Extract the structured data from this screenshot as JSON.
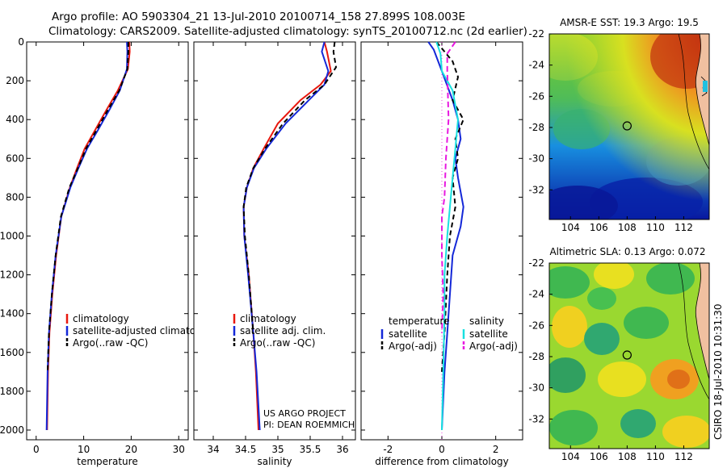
{
  "header": {
    "line1": "Argo profile: AO 5903304_21 13-Jul-2010 20100714_158 27.899S 108.003E",
    "line2": "Climatology: CARS2009. Satellite-adjusted climatology: synTS_20100712.nc (2d earlier)"
  },
  "side_text": "CSIRO 18-Jul-2010 10:31:30",
  "colors": {
    "climatology": "#e8180e",
    "satellite": "#1428d8",
    "argo": "#000000",
    "sat_cyan": "#18e0e0",
    "argo_magenta": "#e818e0"
  },
  "chart_data": [
    {
      "type": "line",
      "name": "temperature-profile",
      "xlabel": "temperature",
      "ylabel": "",
      "xlim": [
        -2,
        32
      ],
      "ylim": [
        2050,
        0
      ],
      "xticks": [
        0,
        10,
        20,
        30
      ],
      "yticks": [
        0,
        200,
        400,
        600,
        800,
        1000,
        1200,
        1400,
        1600,
        1800,
        2000
      ],
      "legend": [
        "climatology",
        "satellite-adjusted climatology",
        "Argo(..raw -QC)"
      ],
      "series": [
        {
          "name": "climatology",
          "color": "#e8180e",
          "dash": "",
          "x": [
            19.6,
            19.7,
            19.3,
            17.2,
            14.8,
            12.5,
            10.2,
            8.6,
            7.1,
            5.3,
            4.2,
            3.4,
            2.8,
            2.5,
            2.3
          ],
          "y": [
            0,
            50,
            140,
            250,
            350,
            450,
            550,
            650,
            750,
            900,
            1100,
            1300,
            1500,
            1700,
            2000
          ]
        },
        {
          "name": "satellite",
          "color": "#1428d8",
          "dash": "",
          "x": [
            19.1,
            19.2,
            19.1,
            17.6,
            15.4,
            13.1,
            10.7,
            8.9,
            7.2,
            5.3,
            4.1,
            3.3,
            2.7,
            2.4,
            2.2
          ],
          "y": [
            0,
            50,
            140,
            250,
            350,
            450,
            550,
            650,
            750,
            900,
            1100,
            1300,
            1500,
            1700,
            2000
          ]
        },
        {
          "name": "argo",
          "color": "#000000",
          "dash": "6,4",
          "x": [
            19.4,
            19.4,
            19.2,
            17.5,
            15.1,
            12.8,
            10.5,
            8.8,
            7.0,
            5.2,
            4.1,
            3.3,
            2.7,
            2.4
          ],
          "y": [
            0,
            50,
            140,
            250,
            350,
            450,
            550,
            650,
            750,
            900,
            1100,
            1300,
            1500,
            1700
          ]
        }
      ]
    },
    {
      "type": "line",
      "name": "salinity-profile",
      "xlabel": "salinity",
      "xlim": [
        33.7,
        36.2
      ],
      "ylim": [
        2050,
        0
      ],
      "xticks": [
        34,
        34.5,
        35,
        35.5,
        36
      ],
      "legend": [
        "climatology",
        "satellite adj. clim.",
        "Argo(..raw -QC)"
      ],
      "annotations": [
        "US ARGO PROJECT",
        "PI: DEAN ROEMMICH"
      ],
      "series": [
        {
          "name": "climatology",
          "color": "#e8180e",
          "dash": "",
          "x": [
            35.72,
            35.76,
            35.82,
            35.66,
            35.35,
            35.0,
            34.78,
            34.62,
            34.52,
            34.47,
            34.48,
            34.55,
            34.62,
            34.66,
            34.7
          ],
          "y": [
            0,
            50,
            150,
            220,
            300,
            420,
            550,
            650,
            750,
            850,
            1000,
            1200,
            1500,
            1700,
            2000
          ]
        },
        {
          "name": "satellite",
          "color": "#1428d8",
          "dash": "",
          "x": [
            35.72,
            35.68,
            35.78,
            35.72,
            35.48,
            35.12,
            34.82,
            34.63,
            34.52,
            34.47,
            34.48,
            34.54,
            34.62,
            34.67,
            34.72
          ],
          "y": [
            0,
            50,
            150,
            220,
            300,
            420,
            550,
            650,
            750,
            850,
            1000,
            1200,
            1500,
            1700,
            2000
          ]
        },
        {
          "name": "argo",
          "color": "#000000",
          "dash": "6,4",
          "x": [
            35.88,
            35.86,
            35.9,
            35.72,
            35.42,
            35.08,
            34.8,
            34.62,
            34.51,
            34.47,
            34.49,
            34.55,
            34.62
          ],
          "y": [
            0,
            50,
            130,
            220,
            300,
            420,
            550,
            650,
            750,
            850,
            1000,
            1200,
            1500
          ]
        }
      ]
    },
    {
      "type": "line",
      "name": "difference-profile",
      "xlabel": "difference from climatology",
      "xlim": [
        -3,
        3
      ],
      "ylim": [
        2050,
        0
      ],
      "xticks": [
        -2,
        0,
        2
      ],
      "legend_temperature": [
        "temperature",
        "satellite",
        "Argo(-adj)"
      ],
      "legend_salinity": [
        "salinity",
        "satellite",
        "Argo(-adj)"
      ],
      "series": [
        {
          "name": "temperature satellite",
          "color": "#1428d8",
          "dash": "",
          "x": [
            -0.5,
            -0.3,
            0.0,
            0.4,
            0.6,
            0.7,
            0.5,
            0.6,
            0.8,
            0.7,
            0.4,
            0.3,
            0.2,
            0.1,
            0.0
          ],
          "y": [
            0,
            40,
            150,
            300,
            400,
            500,
            600,
            700,
            850,
            950,
            1100,
            1300,
            1500,
            1700,
            2000
          ]
        },
        {
          "name": "temperature argo",
          "color": "#000000",
          "dash": "6,4",
          "x": [
            -0.2,
            0.4,
            0.6,
            0.4,
            0.8,
            0.5,
            0.6,
            0.4,
            0.5,
            0.3,
            0.2,
            0.1,
            0.0
          ],
          "y": [
            0,
            100,
            180,
            300,
            400,
            500,
            600,
            700,
            850,
            1000,
            1200,
            1500,
            1700
          ]
        },
        {
          "name": "salinity satellite",
          "color": "#18e0e0",
          "dash": "",
          "x": [
            -0.2,
            -0.05,
            0.0,
            0.4,
            0.6,
            0.5,
            0.4,
            0.3,
            0.2,
            0.1,
            0.1,
            0.05,
            0.0
          ],
          "y": [
            0,
            60,
            150,
            250,
            400,
            550,
            700,
            850,
            1000,
            1200,
            1400,
            1700,
            2000
          ]
        },
        {
          "name": "salinity argo",
          "color": "#e818e0",
          "dash": "7,4",
          "x": [
            0.5,
            0.2,
            0.2,
            0.25,
            0.15,
            0.1,
            0.0,
            0.0,
            0.05,
            0.0
          ],
          "y": [
            0,
            60,
            150,
            400,
            600,
            800,
            900,
            1100,
            1300,
            1500
          ]
        }
      ]
    }
  ],
  "maps": [
    {
      "name": "sst-map",
      "title": "AMSR-E SST: 19.3 Argo: 19.5",
      "lon_ticks": [
        "104",
        "106",
        "108",
        "110",
        "112"
      ],
      "lat_ticks": [
        "-22",
        "-24",
        "-26",
        "-28",
        "-30",
        "-32"
      ],
      "marker": {
        "lon": 108.0,
        "lat": -27.9
      }
    },
    {
      "name": "sla-map",
      "title": "Altimetric SLA: 0.13 Argo: 0.072",
      "lon_ticks": [
        "104",
        "106",
        "108",
        "110",
        "112"
      ],
      "lat_ticks": [
        "-22",
        "-24",
        "-26",
        "-28",
        "-30",
        "-32"
      ],
      "marker": {
        "lon": 108.0,
        "lat": -27.9
      }
    }
  ]
}
